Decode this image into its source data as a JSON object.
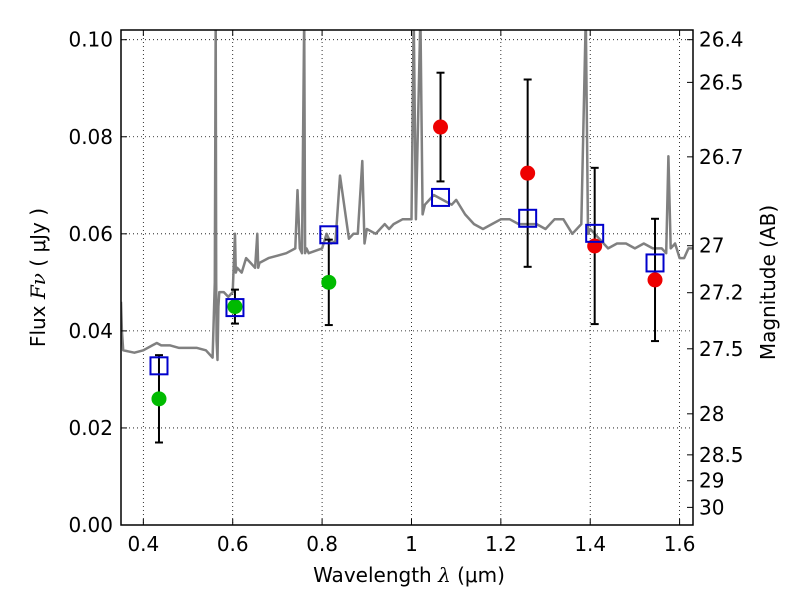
{
  "chart_data": {
    "type": "scatter",
    "xlabel": "Wavelength  λ (μm)",
    "ylabel": "Flux  Fν  ( μJy )",
    "y2label": "Magnitude (AB)",
    "xlim": [
      0.35,
      1.63
    ],
    "ylim": [
      0.0,
      0.102
    ],
    "grid": true,
    "x_ticks": [
      0.4,
      0.6,
      0.8,
      1.0,
      1.2,
      1.4,
      1.6
    ],
    "x_tick_labels": [
      "0.4",
      "0.6",
      "0.8",
      "1",
      "1.2",
      "1.4",
      "1.6"
    ],
    "y_ticks": [
      0.0,
      0.02,
      0.04,
      0.06,
      0.08,
      0.1
    ],
    "y_tick_labels": [
      "0.00",
      "0.02",
      "0.04",
      "0.06",
      "0.08",
      "0.10"
    ],
    "mag_ticks": [
      26.4,
      26.5,
      26.7,
      27,
      27.2,
      27.5,
      28,
      28.5,
      29,
      30
    ],
    "mag_tick_labels": [
      "26.4",
      "26.5",
      "26.7",
      "27",
      "27.2",
      "27.5",
      "28",
      "28.5",
      "29",
      "30"
    ],
    "colors": {
      "template": "#808080",
      "green": "#00bb00",
      "red": "#ee0000",
      "model": "#0000cc",
      "errorbar": "#000000"
    },
    "series": [
      {
        "marker": "circle-green",
        "x": [
          0.435,
          0.605,
          0.815
        ],
        "y": [
          0.026,
          0.045,
          0.05
        ],
        "yerr": [
          0.009,
          0.0035,
          0.0088
        ]
      },
      {
        "marker": "circle-red",
        "x": [
          1.065,
          1.26,
          1.41,
          1.545
        ],
        "y": [
          0.082,
          0.0725,
          0.0575,
          0.0505
        ],
        "yerr": [
          0.0112,
          0.0193,
          0.0161,
          0.0126
        ]
      },
      {
        "marker": "open-square-blue",
        "x": [
          0.435,
          0.605,
          0.815,
          1.065,
          1.26,
          1.41,
          1.545
        ],
        "y": [
          0.0328,
          0.0448,
          0.0598,
          0.0675,
          0.0632,
          0.0601,
          0.054
        ]
      },
      {
        "marker": "line-gray",
        "x": [
          0.35,
          0.352,
          0.355,
          0.38,
          0.4,
          0.42,
          0.43,
          0.44,
          0.46,
          0.48,
          0.5,
          0.52,
          0.54,
          0.555,
          0.56,
          0.562,
          0.563,
          0.564,
          0.566,
          0.568,
          0.57,
          0.58,
          0.59,
          0.6,
          0.605,
          0.607,
          0.61,
          0.62,
          0.63,
          0.64,
          0.65,
          0.655,
          0.657,
          0.66,
          0.68,
          0.7,
          0.72,
          0.74,
          0.745,
          0.75,
          0.755,
          0.76,
          0.762,
          0.765,
          0.77,
          0.8,
          0.81,
          0.82,
          0.83,
          0.84,
          0.86,
          0.87,
          0.88,
          0.89,
          0.895,
          0.9,
          0.92,
          0.94,
          0.95,
          0.96,
          0.98,
          1.0,
          1.005,
          1.01,
          1.02,
          1.025,
          1.03,
          1.04,
          1.05,
          1.07,
          1.09,
          1.1,
          1.12,
          1.14,
          1.16,
          1.18,
          1.2,
          1.22,
          1.24,
          1.26,
          1.28,
          1.3,
          1.32,
          1.34,
          1.36,
          1.38,
          1.39,
          1.395,
          1.4,
          1.42,
          1.44,
          1.46,
          1.48,
          1.5,
          1.52,
          1.54,
          1.56,
          1.57,
          1.575,
          1.58,
          1.59,
          1.6,
          1.61,
          1.62,
          1.63
        ],
        "y": [
          0.046,
          0.04,
          0.036,
          0.0355,
          0.036,
          0.037,
          0.0375,
          0.037,
          0.037,
          0.0365,
          0.0365,
          0.0365,
          0.036,
          0.0345,
          0.05,
          0.105,
          0.05,
          0.038,
          0.034,
          0.045,
          0.048,
          0.048,
          0.047,
          0.048,
          0.06,
          0.052,
          0.053,
          0.052,
          0.055,
          0.054,
          0.053,
          0.06,
          0.053,
          0.054,
          0.055,
          0.0555,
          0.056,
          0.057,
          0.069,
          0.057,
          0.056,
          0.105,
          0.056,
          0.057,
          0.056,
          0.057,
          0.06,
          0.058,
          0.0585,
          0.072,
          0.059,
          0.06,
          0.06,
          0.075,
          0.058,
          0.061,
          0.06,
          0.062,
          0.061,
          0.062,
          0.063,
          0.063,
          0.105,
          0.063,
          0.105,
          0.064,
          0.066,
          0.067,
          0.068,
          0.067,
          0.066,
          0.067,
          0.064,
          0.062,
          0.061,
          0.062,
          0.063,
          0.063,
          0.062,
          0.062,
          0.062,
          0.061,
          0.063,
          0.063,
          0.06,
          0.062,
          0.105,
          0.06,
          0.061,
          0.059,
          0.057,
          0.058,
          0.058,
          0.057,
          0.058,
          0.057,
          0.057,
          0.056,
          0.076,
          0.057,
          0.058,
          0.055,
          0.055,
          0.057,
          0.057
        ]
      }
    ]
  }
}
